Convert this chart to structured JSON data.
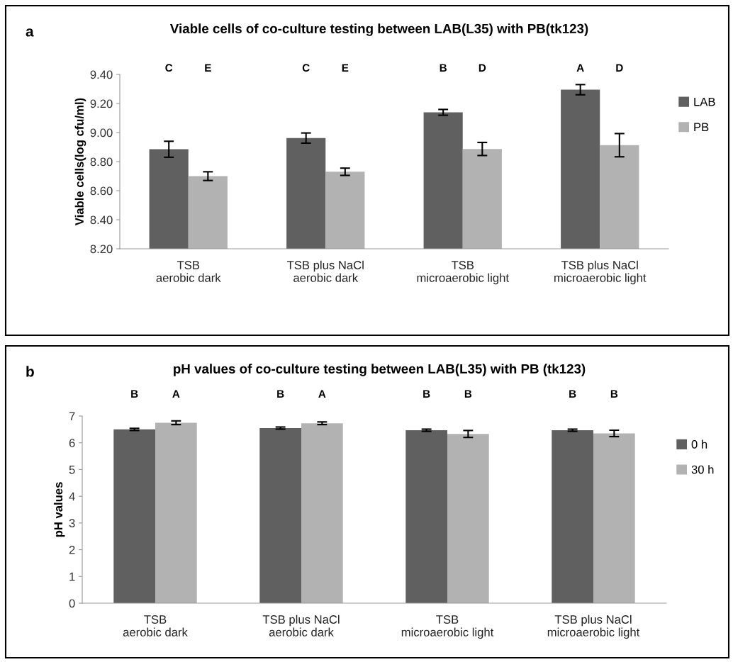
{
  "chart_data": [
    {
      "type": "bar",
      "title": "Viable cells of co-culture testing between LAB(L35) with PB(tk123)",
      "ylabel": "Viable cells(log cfu/ml)",
      "categories": [
        "TSB\naerobic dark",
        "TSB plus NaCl\naerobic dark",
        "TSB\nmicroaerobic light",
        "TSB plus NaCl\nmicroaerobic light"
      ],
      "series": [
        {
          "name": "LAB",
          "color": "#606060",
          "values": [
            8.885,
            8.962,
            9.139,
            9.295
          ],
          "errors": [
            0.055,
            0.035,
            0.02,
            0.035
          ]
        },
        {
          "name": "PB",
          "color": "#b2b2b2",
          "values": [
            8.7,
            8.73,
            8.887,
            8.913
          ],
          "errors": [
            0.03,
            0.025,
            0.045,
            0.08
          ]
        }
      ],
      "ylim": [
        8.2,
        9.4
      ],
      "yticks": [
        {
          "value": 8.2,
          "label": "8.20"
        },
        {
          "value": 8.4,
          "label": "8.40"
        },
        {
          "value": 8.6,
          "label": "8.60"
        },
        {
          "value": 8.8,
          "label": "8.80"
        },
        {
          "value": 9.0,
          "label": "9.00"
        },
        {
          "value": 9.2,
          "label": "9.20"
        },
        {
          "value": 9.4,
          "label": "9.40"
        }
      ],
      "legend": "right",
      "grid": false,
      "annotations": [
        "a",
        "C",
        "E",
        "C",
        "E",
        "B",
        "D",
        "A",
        "D"
      ]
    },
    {
      "type": "bar",
      "title": "pH values of co-culture testing between LAB(L35) with PB (tk123)",
      "ylabel": "pH values",
      "categories": [
        "TSB\naerobic dark",
        "TSB plus NaCl\naerobic dark",
        "TSB\nmicroaerobic light",
        "TSB plus NaCl\nmicroaerobic light"
      ],
      "series": [
        {
          "name": "0 h",
          "color": "#606060",
          "values": [
            6.5,
            6.55,
            6.47,
            6.47
          ],
          "errors": [
            0.04,
            0.04,
            0.04,
            0.04
          ]
        },
        {
          "name": "30 h",
          "color": "#b2b2b2",
          "values": [
            6.75,
            6.73,
            6.33,
            6.35
          ],
          "errors": [
            0.07,
            0.05,
            0.13,
            0.12
          ]
        }
      ],
      "ylim": [
        0,
        7
      ],
      "yticks": [
        0,
        1,
        2,
        3,
        4,
        5,
        6,
        7
      ],
      "legend": "right",
      "grid": false,
      "annotations": [
        "b",
        "B",
        "A",
        "B",
        "A",
        "B",
        "B",
        "B",
        "B"
      ]
    }
  ]
}
